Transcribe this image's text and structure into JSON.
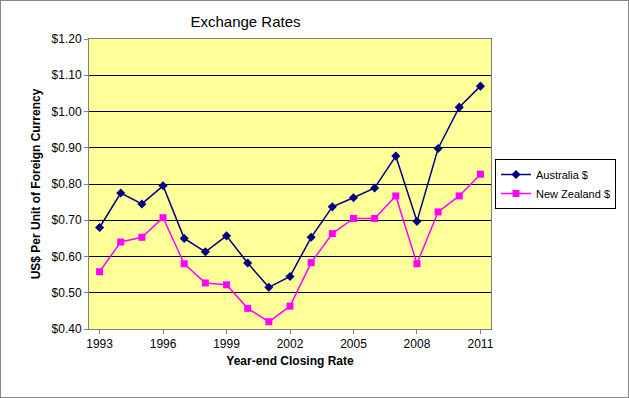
{
  "chart_data": {
    "type": "line",
    "title": "Exchange Rates",
    "x_label": "Year-end Closing Rate",
    "y_label": "US$ Per Unit of Foreign Currency",
    "x": [
      1993,
      1994,
      1995,
      1996,
      1997,
      1998,
      1999,
      2000,
      2001,
      2002,
      2003,
      2004,
      2005,
      2006,
      2007,
      2008,
      2009,
      2010,
      2011
    ],
    "series": [
      {
        "name": "Australia $",
        "color": "#000080",
        "marker": "diamond",
        "values": [
          0.68,
          0.775,
          0.745,
          0.795,
          0.65,
          0.613,
          0.657,
          0.582,
          0.515,
          0.545,
          0.653,
          0.737,
          0.762,
          0.789,
          0.877,
          0.697,
          0.898,
          1.012,
          1.07
        ]
      },
      {
        "name": "New Zealand $",
        "color": "#FF00FF",
        "marker": "square",
        "values": [
          0.558,
          0.64,
          0.653,
          0.707,
          0.58,
          0.527,
          0.522,
          0.457,
          0.42,
          0.463,
          0.583,
          0.663,
          0.705,
          0.705,
          0.767,
          0.58,
          0.723,
          0.767,
          0.827
        ]
      }
    ],
    "xlim": [
      1992.5,
      2011.5
    ],
    "xticks": [
      1993,
      1996,
      1999,
      2002,
      2005,
      2008,
      2011
    ],
    "ylim": [
      0.4,
      1.2
    ],
    "yticks": [
      {
        "value": 0.4,
        "label": "$0.40"
      },
      {
        "value": 0.5,
        "label": "$0.50"
      },
      {
        "value": 0.6,
        "label": "$0.60"
      },
      {
        "value": 0.7,
        "label": "$0.70"
      },
      {
        "value": 0.8,
        "label": "$0.80"
      },
      {
        "value": 0.9,
        "label": "$0.90"
      },
      {
        "value": 1.0,
        "label": "$1.00"
      },
      {
        "value": 1.1,
        "label": "$1.10"
      },
      {
        "value": 1.2,
        "label": "$1.20"
      }
    ],
    "grid": true,
    "legend": "right"
  }
}
